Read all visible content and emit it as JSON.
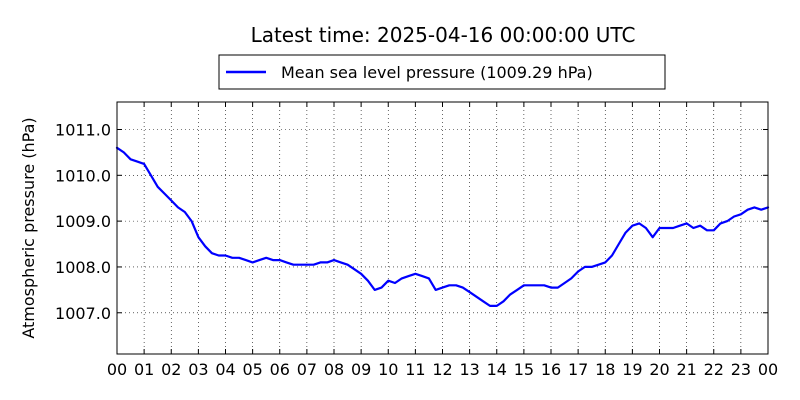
{
  "chart_data": {
    "type": "line",
    "title": "Latest time: 2025-04-16 00:00:00 UTC",
    "xlabel": "",
    "ylabel": "Atmospheric pressure (hPa)",
    "xlim": [
      0,
      24
    ],
    "ylim": [
      1006.1,
      1011.6
    ],
    "grid": true,
    "legend_position": "top-center, above plot",
    "x_ticks": [
      "00",
      "01",
      "02",
      "03",
      "04",
      "05",
      "06",
      "07",
      "08",
      "09",
      "10",
      "11",
      "12",
      "13",
      "14",
      "15",
      "16",
      "17",
      "18",
      "19",
      "20",
      "21",
      "22",
      "23",
      "00"
    ],
    "y_ticks": [
      "1007.0",
      "1008.0",
      "1009.0",
      "1010.0",
      "1011.0"
    ],
    "y_tick_values": [
      1007.0,
      1008.0,
      1009.0,
      1010.0,
      1011.0
    ],
    "series": [
      {
        "name": "Mean sea level pressure (1009.29 hPa)",
        "color": "#0000ff",
        "x": [
          0.0,
          0.25,
          0.5,
          0.75,
          1.0,
          1.25,
          1.5,
          1.75,
          2.0,
          2.25,
          2.5,
          2.75,
          3.0,
          3.25,
          3.5,
          3.75,
          4.0,
          4.25,
          4.5,
          4.75,
          5.0,
          5.25,
          5.5,
          5.75,
          6.0,
          6.25,
          6.5,
          6.75,
          7.0,
          7.25,
          7.5,
          7.75,
          8.0,
          8.25,
          8.5,
          8.75,
          9.0,
          9.25,
          9.5,
          9.75,
          10.0,
          10.25,
          10.5,
          10.75,
          11.0,
          11.25,
          11.5,
          11.75,
          12.0,
          12.25,
          12.5,
          12.75,
          13.0,
          13.25,
          13.5,
          13.75,
          14.0,
          14.25,
          14.5,
          14.75,
          15.0,
          15.25,
          15.5,
          15.75,
          16.0,
          16.25,
          16.5,
          16.75,
          17.0,
          17.25,
          17.5,
          17.75,
          18.0,
          18.25,
          18.5,
          18.75,
          19.0,
          19.25,
          19.5,
          19.75,
          20.0,
          20.25,
          20.5,
          20.75,
          21.0,
          21.25,
          21.5,
          21.75,
          22.0,
          22.25,
          22.5,
          22.75,
          23.0,
          23.25,
          23.5,
          23.75,
          24.0
        ],
        "values": [
          1010.6,
          1010.5,
          1010.35,
          1010.3,
          1010.25,
          1010.0,
          1009.75,
          1009.6,
          1009.45,
          1009.3,
          1009.2,
          1009.0,
          1008.65,
          1008.45,
          1008.3,
          1008.25,
          1008.25,
          1008.2,
          1008.2,
          1008.15,
          1008.1,
          1008.15,
          1008.2,
          1008.15,
          1008.15,
          1008.1,
          1008.05,
          1008.05,
          1008.05,
          1008.05,
          1008.1,
          1008.1,
          1008.15,
          1008.1,
          1008.05,
          1007.95,
          1007.85,
          1007.7,
          1007.5,
          1007.55,
          1007.7,
          1007.65,
          1007.75,
          1007.8,
          1007.85,
          1007.8,
          1007.75,
          1007.5,
          1007.55,
          1007.6,
          1007.6,
          1007.55,
          1007.45,
          1007.35,
          1007.25,
          1007.15,
          1007.15,
          1007.25,
          1007.4,
          1007.5,
          1007.6,
          1007.6,
          1007.6,
          1007.6,
          1007.55,
          1007.55,
          1007.65,
          1007.75,
          1007.9,
          1008.0,
          1008.0,
          1008.05,
          1008.1,
          1008.25,
          1008.5,
          1008.75,
          1008.9,
          1008.95,
          1008.85,
          1008.65,
          1008.85,
          1008.85,
          1008.85,
          1008.9,
          1008.95,
          1008.85,
          1008.9,
          1008.8,
          1008.8,
          1008.95,
          1009.0,
          1009.1,
          1009.15,
          1009.25,
          1009.3,
          1009.25,
          1009.3
        ]
      }
    ]
  }
}
